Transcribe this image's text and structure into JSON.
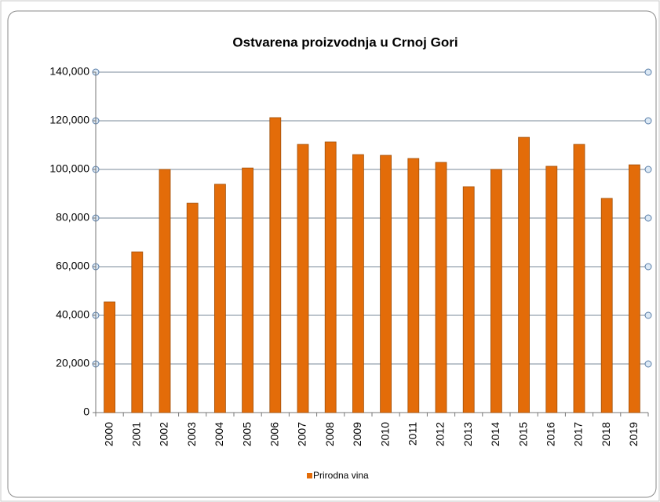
{
  "chart_data": {
    "type": "bar",
    "title": "Ostvarena proizvodnja u Crnoj Gori",
    "categories": [
      "2000",
      "2001",
      "2002",
      "2003",
      "2004",
      "2005",
      "2006",
      "2007",
      "2008",
      "2009",
      "2010",
      "2011",
      "2012",
      "2013",
      "2014",
      "2015",
      "2016",
      "2017",
      "2018",
      "2019"
    ],
    "series": [
      {
        "name": "Prirodna vina",
        "color": "#e36c09",
        "values": [
          45500,
          66100,
          100000,
          86100,
          93900,
          100600,
          121300,
          110300,
          111300,
          106100,
          105800,
          104500,
          102900,
          92900,
          100000,
          113200,
          101300,
          110300,
          88100,
          101900
        ]
      }
    ],
    "ylim": [
      0,
      140000
    ],
    "yticks": [
      0,
      {
        "value": 20000,
        "label": "20,000"
      },
      {
        "value": 40000,
        "label": "40,000"
      },
      {
        "value": 60000,
        "label": "60,000"
      },
      {
        "value": 80000,
        "label": "80,000"
      },
      {
        "value": 100000,
        "label": "100,000"
      },
      {
        "value": 120000,
        "label": "120,000"
      },
      {
        "value": 140000,
        "label": "140,000"
      }
    ],
    "grid": true,
    "legend": "bottom"
  }
}
